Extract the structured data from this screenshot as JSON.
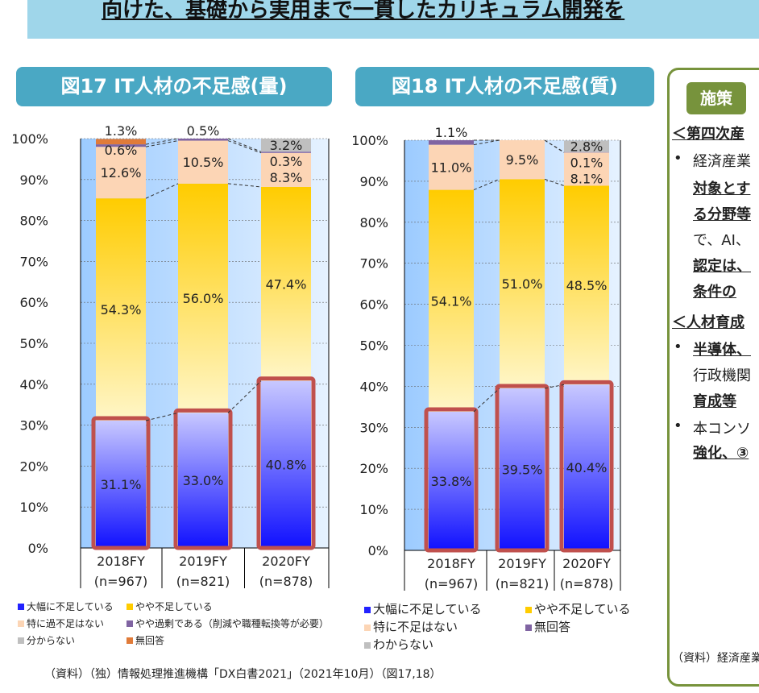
{
  "banner": {
    "title": "向けた、基礎から実用まで一貫したカリキュラム開発を"
  },
  "colors": {
    "severe": "#2222ff",
    "somewhat": "#ffcc00",
    "none": "#fcd5b5",
    "surplus": "#8064a2",
    "no_answer": "#e07b39",
    "unknown": "#bfbfbf",
    "outline": "#c0504d"
  },
  "chart_data": [
    {
      "type": "bar",
      "stacked": true,
      "title": "図17 IT人材の不足感(量)",
      "ylim": [
        0,
        100
      ],
      "yticks": [
        "0%",
        "10%",
        "20%",
        "30%",
        "40%",
        "50%",
        "60%",
        "70%",
        "80%",
        "90%",
        "100%"
      ],
      "categories": [
        "2018FY",
        "2019FY",
        "2020FY"
      ],
      "category_n": [
        "(n=967)",
        "(n=821)",
        "(n=878)"
      ],
      "series": [
        {
          "name": "大幅に不足している",
          "key": "severe",
          "values": [
            31.1,
            33.0,
            40.8
          ]
        },
        {
          "name": "やや不足している",
          "key": "somewhat",
          "values": [
            54.3,
            56.0,
            47.4
          ]
        },
        {
          "name": "特に過不足はない",
          "key": "none",
          "values": [
            12.6,
            10.5,
            8.3
          ]
        },
        {
          "name": "やや過剰である（削減や職種転換等が必要）",
          "key": "surplus",
          "values": [
            0.6,
            0.5,
            0.3
          ]
        },
        {
          "name": "分からない",
          "key": "unknown",
          "values": [
            0,
            0,
            3.2
          ]
        },
        {
          "name": "無回答",
          "key": "no_answer",
          "values": [
            1.3,
            0,
            0
          ]
        }
      ],
      "labels": [
        [
          "31.1%",
          "54.3%",
          "12.6%",
          "0.6%",
          "",
          "1.3%"
        ],
        [
          "33.0%",
          "56.0%",
          "10.5%",
          "0.5%",
          "",
          ""
        ],
        [
          "40.8%",
          "47.4%",
          "8.3%",
          "0.3%",
          "3.2%",
          ""
        ]
      ],
      "legend_order": [
        0,
        1,
        2,
        3,
        4,
        5
      ]
    },
    {
      "type": "bar",
      "stacked": true,
      "title": "図18 IT人材の不足感(質)",
      "ylim": [
        0,
        100
      ],
      "yticks": [
        "0%",
        "10%",
        "20%",
        "30%",
        "40%",
        "50%",
        "60%",
        "70%",
        "80%",
        "90%",
        "100%"
      ],
      "categories": [
        "2018FY",
        "2019FY",
        "2020FY"
      ],
      "category_n": [
        "(n=967)",
        "(n=821)",
        "(n=878)"
      ],
      "series": [
        {
          "name": "大幅に不足している",
          "key": "severe",
          "values": [
            33.8,
            39.5,
            40.4
          ]
        },
        {
          "name": "やや不足している",
          "key": "somewhat",
          "values": [
            54.1,
            51.0,
            48.5
          ]
        },
        {
          "name": "特に不足はない",
          "key": "none",
          "values": [
            11.0,
            9.5,
            8.1
          ]
        },
        {
          "name": "無回答",
          "key": "surplus",
          "values": [
            1.1,
            0,
            0.1
          ]
        },
        {
          "name": "わからない",
          "key": "unknown",
          "values": [
            0,
            0,
            2.8
          ]
        }
      ],
      "labels": [
        [
          "33.8%",
          "54.1%",
          "11.0%",
          "1.1%",
          ""
        ],
        [
          "39.5%",
          "51.0%",
          "9.5%",
          "",
          ""
        ],
        [
          "40.4%",
          "48.5%",
          "8.1%",
          "0.1%",
          "2.8%"
        ]
      ],
      "legend_order": [
        0,
        1,
        2,
        3,
        4
      ]
    }
  ],
  "source": "（資料）（独）情報処理推進機構「DX白書2021」（2021年10月）（図17,18）",
  "panel": {
    "badge": "施策",
    "lines": [
      "＜第四次産",
      "経済産業",
      "対象とす",
      "る分野等",
      "で、AI、",
      "認定は、",
      "条件の",
      "＜人材育成",
      "半導体、",
      "行政機関",
      "育成等",
      "本コンソ",
      "強化、③"
    ],
    "source": "（資料）経済産業"
  }
}
